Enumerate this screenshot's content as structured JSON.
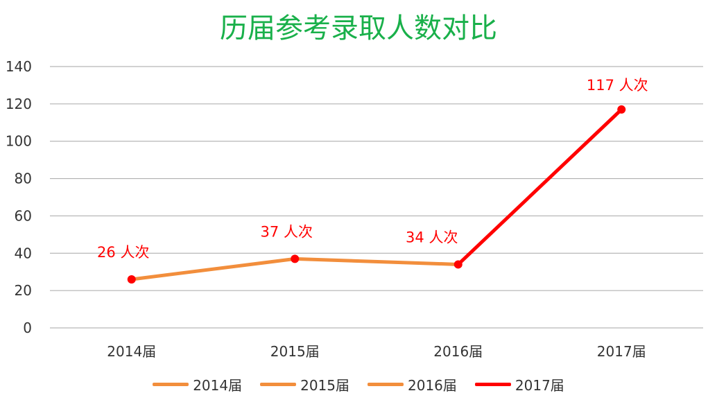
{
  "chart_data": {
    "type": "line",
    "title": "历届参考录取人数对比",
    "xlabel": "",
    "ylabel": "",
    "categories": [
      "2014届",
      "2015届",
      "2016届",
      "2017届"
    ],
    "values": [
      26,
      37,
      34,
      117
    ],
    "data_labels": [
      "26 人次",
      "37 人次",
      "34 人次",
      "117 人次"
    ],
    "ylim": [
      0,
      140
    ],
    "yticks": [
      "0",
      "20",
      "40",
      "60",
      "80",
      "100",
      "120",
      "140"
    ],
    "grid": true,
    "legend_position": "bottom",
    "legend": [
      "2014届",
      "2015届",
      "2016届",
      "2017届"
    ],
    "segment_colors": [
      "#f28e3c",
      "#f28e3c",
      "#ff0000"
    ],
    "legend_colors": [
      "#f28e3c",
      "#f28e3c",
      "#f28e3c",
      "#ff0000"
    ]
  },
  "colors": {
    "title": "#19b04a",
    "marker": "#ff0000",
    "data_label": "#ff0000",
    "grid": "#a6a6a6",
    "axis_text": "#333333"
  }
}
